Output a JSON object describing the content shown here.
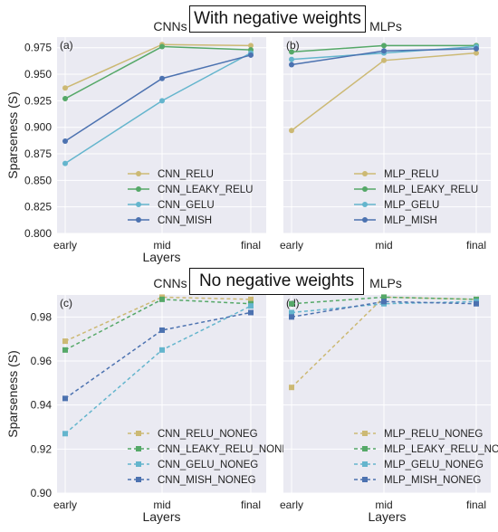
{
  "banners": {
    "top": "With negative weights",
    "bottom": "No negative weights"
  },
  "colors": {
    "relu": "#ccb974",
    "leaky": "#55a868",
    "gelu": "#64b5cd",
    "mish": "#4c72b0",
    "panel_bg": "#eaeaf2",
    "grid": "#ffffff"
  },
  "chart_data": [
    {
      "type": "line",
      "panel": "(a)",
      "title": "CNNs",
      "xlabel": "Layers",
      "ylabel": "Sparseness (S)",
      "categories": [
        "early",
        "mid",
        "final"
      ],
      "ylim": [
        0.8,
        0.985
      ],
      "yticks": [
        "0.800",
        "0.825",
        "0.850",
        "0.875",
        "0.900",
        "0.925",
        "0.950",
        "0.975"
      ],
      "line_style": "solid",
      "marker": "circle",
      "legend": "lower-right",
      "series": [
        {
          "name": "CNN_RELU",
          "color": "#ccb974",
          "values": [
            0.937,
            0.978,
            0.977
          ]
        },
        {
          "name": "CNN_LEAKY_RELU",
          "color": "#55a868",
          "values": [
            0.927,
            0.976,
            0.973
          ]
        },
        {
          "name": "CNN_GELU",
          "color": "#64b5cd",
          "values": [
            0.866,
            0.925,
            0.97
          ]
        },
        {
          "name": "CNN_MISH",
          "color": "#4c72b0",
          "values": [
            0.887,
            0.946,
            0.968
          ]
        }
      ]
    },
    {
      "type": "line",
      "panel": "(b)",
      "title": "MLPs",
      "xlabel": "",
      "ylabel": "",
      "categories": [
        "early",
        "mid",
        "final"
      ],
      "ylim": [
        0.8,
        0.985
      ],
      "yticks": [],
      "line_style": "solid",
      "marker": "circle",
      "legend": "lower-right",
      "series": [
        {
          "name": "MLP_RELU",
          "color": "#ccb974",
          "values": [
            0.897,
            0.963,
            0.97
          ]
        },
        {
          "name": "MLP_LEAKY_RELU",
          "color": "#55a868",
          "values": [
            0.971,
            0.977,
            0.977
          ]
        },
        {
          "name": "MLP_GELU",
          "color": "#64b5cd",
          "values": [
            0.964,
            0.97,
            0.976
          ]
        },
        {
          "name": "MLP_MISH",
          "color": "#4c72b0",
          "values": [
            0.959,
            0.972,
            0.974
          ]
        }
      ]
    },
    {
      "type": "line",
      "panel": "(c)",
      "title": "CNNs",
      "xlabel": "Layers",
      "ylabel": "Sparseness (S)",
      "categories": [
        "early",
        "mid",
        "final"
      ],
      "ylim": [
        0.9,
        0.99
      ],
      "yticks": [
        "0.90",
        "0.92",
        "0.94",
        "0.96",
        "0.98"
      ],
      "line_style": "dashed",
      "marker": "square",
      "legend": "lower-right",
      "series": [
        {
          "name": "CNN_RELU_NONEG",
          "color": "#ccb974",
          "values": [
            0.969,
            0.989,
            0.988
          ]
        },
        {
          "name": "CNN_LEAKY_RELU_NONEG",
          "color": "#55a868",
          "values": [
            0.965,
            0.988,
            0.986
          ]
        },
        {
          "name": "CNN_GELU_NONEG",
          "color": "#64b5cd",
          "values": [
            0.927,
            0.965,
            0.985
          ]
        },
        {
          "name": "CNN_MISH_NONEG",
          "color": "#4c72b0",
          "values": [
            0.943,
            0.974,
            0.982
          ]
        }
      ]
    },
    {
      "type": "line",
      "panel": "(d)",
      "title": "MLPs",
      "xlabel": "Layers",
      "ylabel": "",
      "categories": [
        "early",
        "mid",
        "final"
      ],
      "ylim": [
        0.9,
        0.99
      ],
      "yticks": [],
      "line_style": "dashed",
      "marker": "square",
      "legend": "lower-right",
      "series": [
        {
          "name": "MLP_RELU_NONEG",
          "color": "#ccb974",
          "values": [
            0.948,
            0.989,
            0.988
          ]
        },
        {
          "name": "MLP_LEAKY_RELU_NONEG",
          "color": "#55a868",
          "values": [
            0.986,
            0.989,
            0.988
          ]
        },
        {
          "name": "MLP_GELU_NONEG",
          "color": "#64b5cd",
          "values": [
            0.982,
            0.986,
            0.987
          ]
        },
        {
          "name": "MLP_MISH_NONEG",
          "color": "#4c72b0",
          "values": [
            0.98,
            0.987,
            0.986
          ]
        }
      ]
    }
  ]
}
